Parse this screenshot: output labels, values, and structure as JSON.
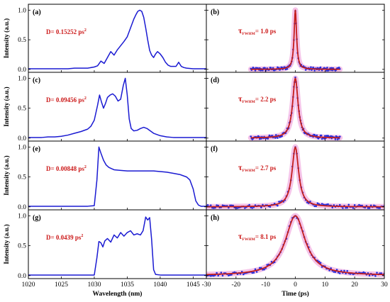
{
  "colors": {
    "spectrum": "#1a1ad2",
    "fit": "#c41e1e",
    "measured": "#1f2fe0",
    "halo": "#f3b9e4"
  },
  "chart_data": [
    {
      "id": "a",
      "type": "line",
      "panel_label": "(a)",
      "xlabel": "",
      "ylabel": "Intensity (a.u.)",
      "xlim": [
        1020,
        1047
      ],
      "ylim": [
        -0.05,
        1.1
      ],
      "annotation": {
        "prefix": "D= ",
        "value": "0.15252 ps",
        "sup": "2"
      },
      "series": [
        {
          "x": [
            1020,
            1021,
            1022,
            1023,
            1024,
            1025,
            1026,
            1027,
            1028,
            1029,
            1030,
            1030.5,
            1031,
            1031.5,
            1032,
            1032.5,
            1033,
            1033.5,
            1034,
            1034.5,
            1035,
            1035.5,
            1036,
            1036.3,
            1036.6,
            1036.9,
            1037.2,
            1037.5,
            1037.8,
            1038.1,
            1038.4,
            1038.7,
            1039,
            1039.3,
            1039.6,
            1040,
            1040.4,
            1040.8,
            1041.2,
            1041.6,
            1042,
            1042.4,
            1042.8,
            1043.2,
            1043.6,
            1044,
            1045,
            1046,
            1047
          ],
          "y": [
            0.01,
            0.01,
            0.01,
            0.01,
            0.01,
            0.01,
            0.01,
            0.02,
            0.02,
            0.02,
            0.04,
            0.06,
            0.14,
            0.1,
            0.2,
            0.3,
            0.24,
            0.33,
            0.4,
            0.47,
            0.55,
            0.7,
            0.85,
            0.92,
            0.98,
            1.0,
            0.98,
            0.88,
            0.7,
            0.5,
            0.32,
            0.24,
            0.2,
            0.26,
            0.3,
            0.26,
            0.2,
            0.12,
            0.07,
            0.05,
            0.05,
            0.05,
            0.12,
            0.05,
            0.03,
            0.02,
            0.01,
            0.01,
            0.01
          ]
        }
      ]
    },
    {
      "id": "b",
      "type": "scatter",
      "panel_label": "(b)",
      "xlabel": "",
      "ylabel": "",
      "xlim": [
        -30,
        30
      ],
      "ylim": [
        -0.05,
        1.1
      ],
      "annotation": {
        "prefix": "τ",
        "sub": "FWHM",
        "value": "= 1.0 ps"
      },
      "fwhm_ps": 1.0,
      "data_range": [
        -15,
        15
      ]
    },
    {
      "id": "c",
      "type": "line",
      "panel_label": "(c)",
      "xlabel": "",
      "ylabel": "Intensity (a.u.)",
      "xlim": [
        1020,
        1047
      ],
      "ylim": [
        -0.05,
        1.1
      ],
      "annotation": {
        "prefix": "D= ",
        "value": "0.09456 ps",
        "sup": "2"
      },
      "series": [
        {
          "x": [
            1020,
            1021,
            1022,
            1023,
            1024,
            1025,
            1026,
            1027,
            1028,
            1029,
            1029.5,
            1030,
            1030.5,
            1030.8,
            1031.1,
            1031.4,
            1031.7,
            1032,
            1032.4,
            1032.8,
            1033.2,
            1033.6,
            1034,
            1034.4,
            1034.7,
            1035,
            1035.3,
            1035.6,
            1036,
            1036.5,
            1037,
            1037.5,
            1038,
            1038.5,
            1039,
            1040,
            1041,
            1042,
            1043,
            1044,
            1045,
            1046,
            1047
          ],
          "y": [
            0.01,
            0.01,
            0.01,
            0.02,
            0.02,
            0.03,
            0.05,
            0.08,
            0.11,
            0.15,
            0.2,
            0.3,
            0.55,
            0.72,
            0.6,
            0.5,
            0.58,
            0.68,
            0.72,
            0.74,
            0.7,
            0.62,
            0.65,
            0.88,
            1.0,
            0.72,
            0.32,
            0.16,
            0.12,
            0.13,
            0.16,
            0.18,
            0.16,
            0.12,
            0.08,
            0.04,
            0.02,
            0.01,
            0.01,
            0.01,
            0.01,
            0.01,
            0.01
          ]
        }
      ]
    },
    {
      "id": "d",
      "type": "scatter",
      "panel_label": "(d)",
      "xlabel": "",
      "ylabel": "",
      "xlim": [
        -30,
        30
      ],
      "ylim": [
        -0.05,
        1.1
      ],
      "annotation": {
        "prefix": "τ",
        "sub": "FWHM",
        "value": "= 2.2 ps"
      },
      "fwhm_ps": 2.2,
      "data_range": [
        -15,
        15
      ]
    },
    {
      "id": "e",
      "type": "line",
      "panel_label": "(e)",
      "xlabel": "",
      "ylabel": "Intensity (a.u.)",
      "xlim": [
        1020,
        1047
      ],
      "ylim": [
        -0.05,
        1.1
      ],
      "annotation": {
        "prefix": "D= ",
        "value": "0.00848 ps",
        "sup": "2"
      },
      "series": [
        {
          "x": [
            1020,
            1025,
            1029,
            1030,
            1030.4,
            1030.7,
            1031,
            1031.4,
            1031.8,
            1032.2,
            1032.6,
            1033,
            1034,
            1035,
            1036,
            1037,
            1038,
            1039,
            1040,
            1041,
            1042,
            1043,
            1044,
            1044.5,
            1045,
            1045.4,
            1045.8,
            1046.2,
            1047
          ],
          "y": [
            0.01,
            0.01,
            0.01,
            0.02,
            0.45,
            1.0,
            0.9,
            0.78,
            0.7,
            0.66,
            0.64,
            0.62,
            0.61,
            0.6,
            0.6,
            0.6,
            0.6,
            0.6,
            0.59,
            0.58,
            0.56,
            0.54,
            0.5,
            0.45,
            0.3,
            0.1,
            0.03,
            0.01,
            0.01
          ]
        }
      ]
    },
    {
      "id": "f",
      "type": "scatter",
      "panel_label": "(f)",
      "xlabel": "",
      "ylabel": "",
      "xlim": [
        -30,
        30
      ],
      "ylim": [
        -0.05,
        1.1
      ],
      "annotation": {
        "prefix": "τ",
        "sub": "FWHM",
        "value": "= 2.7 ps"
      },
      "fwhm_ps": 2.7,
      "data_range": [
        -30,
        30
      ]
    },
    {
      "id": "g",
      "type": "line",
      "panel_label": "(g)",
      "xlabel": "Wavelength (nm)",
      "ylabel": "Intensity (a.u.)",
      "xlim": [
        1020,
        1047
      ],
      "ylim": [
        -0.05,
        1.1
      ],
      "xticks": [
        1020,
        1025,
        1030,
        1035,
        1040,
        1045
      ],
      "annotation": {
        "prefix": "D= ",
        "value": "0.0439 ps",
        "sup": "2"
      },
      "series": [
        {
          "x": [
            1020,
            1025,
            1030,
            1030.4,
            1030.7,
            1031,
            1031.3,
            1031.6,
            1032,
            1032.5,
            1033,
            1033.5,
            1034,
            1034.5,
            1035,
            1035.5,
            1036,
            1036.5,
            1037,
            1037.4,
            1037.8,
            1038.1,
            1038.4,
            1038.7,
            1039,
            1039.3,
            1040,
            1042,
            1047
          ],
          "y": [
            0.01,
            0.01,
            0.01,
            0.3,
            0.57,
            0.55,
            0.48,
            0.58,
            0.62,
            0.56,
            0.68,
            0.63,
            0.72,
            0.66,
            0.72,
            0.75,
            0.68,
            0.7,
            0.68,
            0.75,
            0.98,
            0.93,
            0.97,
            0.6,
            0.1,
            0.02,
            0.01,
            0.01,
            0.01
          ]
        }
      ]
    },
    {
      "id": "h",
      "type": "scatter",
      "panel_label": "(h)",
      "xlabel": "Time (ps)",
      "ylabel": "",
      "xlim": [
        -30,
        30
      ],
      "ylim": [
        -0.05,
        1.1
      ],
      "xticks": [
        -30,
        -20,
        -10,
        0,
        10,
        20,
        30
      ],
      "annotation": {
        "prefix": "τ",
        "sub": "FWHM",
        "value": "= 8.1 ps"
      },
      "fwhm_ps": 8.1,
      "data_range": [
        -30,
        30
      ]
    }
  ],
  "yticks": [
    0.0,
    0.5,
    1.0
  ]
}
